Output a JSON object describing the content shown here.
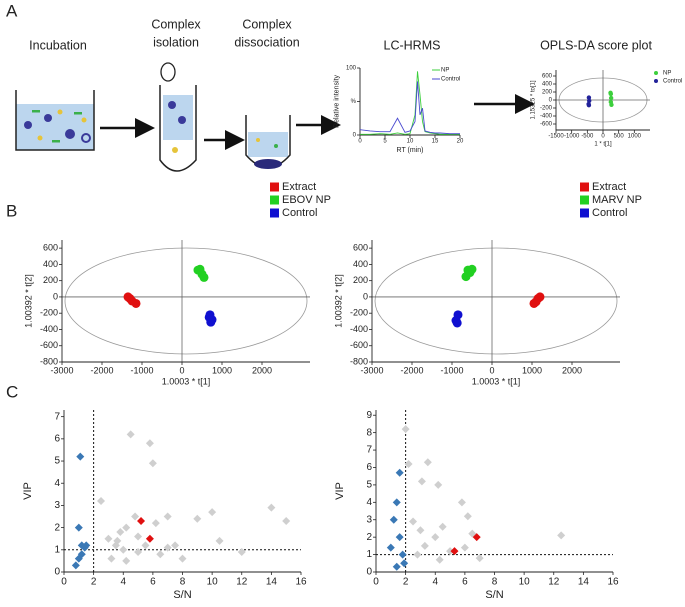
{
  "panels": [
    "A",
    "B",
    "C"
  ],
  "steps": [
    [
      "Incubation"
    ],
    [
      "Complex",
      "isolation"
    ],
    [
      "Complex",
      "dissociation"
    ],
    [
      "LC-HRMS"
    ],
    [
      "OPLS-DA score plot"
    ]
  ],
  "chart_data": [
    {
      "type": "line",
      "xlabel": "RT (min)",
      "ylabel": "Relative intensity",
      "x": [
        0,
        2,
        4,
        6,
        7.5,
        9,
        10,
        11,
        11.5,
        12,
        12.5,
        13,
        14,
        15,
        16,
        18,
        20
      ],
      "series": [
        {
          "name": "NP",
          "color": "#3ccf3c",
          "values": [
            1,
            1,
            2,
            1,
            3,
            1,
            2,
            30,
            95,
            60,
            20,
            5,
            3,
            2,
            1,
            1,
            1
          ]
        },
        {
          "name": "Control",
          "color": "#4a4ad0",
          "values": [
            8,
            6,
            5,
            5,
            25,
            4,
            6,
            20,
            80,
            30,
            40,
            6,
            4,
            3,
            3,
            2,
            2
          ]
        }
      ],
      "xlim": [
        0,
        20
      ],
      "xticks": [
        0,
        5,
        10,
        15,
        20
      ],
      "ylim": [
        0,
        100
      ],
      "yticks": [
        0,
        {
          "value": 50,
          "label": "%"
        },
        100
      ],
      "legend": "top-right"
    },
    {
      "type": "scatter",
      "xlabel": "1 * t[1]",
      "ylabel": "1.15325 * to[1]",
      "marker": "circle",
      "ellipse": true,
      "zero_lines": true,
      "series": [
        {
          "name": "NP",
          "color": "#3ccf3c",
          "x": [
            250,
            260,
            250,
            270,
            240
          ],
          "values": [
            150,
            50,
            -50,
            -120,
            180
          ]
        },
        {
          "name": "Control",
          "color": "#22229a",
          "x": [
            -450,
            -440,
            -460,
            -450
          ],
          "values": [
            60,
            -20,
            -100,
            -130
          ]
        }
      ],
      "xlim": [
        -1500,
        1500
      ],
      "xticks": [
        -1500,
        -1000,
        -500,
        0,
        500,
        1000
      ],
      "ylim": [
        -750,
        750
      ],
      "yticks": [
        -600,
        -400,
        -200,
        0,
        200,
        400,
        600
      ],
      "legend": "right"
    },
    {
      "type": "scatter",
      "xlabel": "1.0003 * t[1]",
      "ylabel": "1.00392 * t[2]",
      "marker": "circle",
      "ellipse": true,
      "zero_lines": true,
      "series": [
        {
          "name": "Extract",
          "color": "#e01010",
          "x": [
            -1300,
            -1250,
            -1150,
            -1350
          ],
          "values": [
            -20,
            -50,
            -80,
            0
          ]
        },
        {
          "name": "EBOV NP",
          "color": "#22d022",
          "x": [
            400,
            500,
            550,
            450
          ],
          "values": [
            330,
            280,
            240,
            340
          ]
        },
        {
          "name": "Control",
          "color": "#1010d0",
          "x": [
            700,
            750,
            720,
            680
          ],
          "values": [
            -220,
            -280,
            -310,
            -250
          ]
        }
      ],
      "xlim": [
        -3000,
        3200
      ],
      "xticks": [
        -3000,
        -2000,
        -1000,
        0,
        1000,
        2000
      ],
      "ylim": [
        -800,
        700
      ],
      "yticks": [
        -800,
        -600,
        -400,
        -200,
        0,
        200,
        400,
        600
      ],
      "legend": "above-right"
    },
    {
      "type": "scatter",
      "xlabel": "1.0003 * t[1]",
      "ylabel": "1.00392 * t[2]",
      "marker": "circle",
      "ellipse": true,
      "zero_lines": true,
      "series": [
        {
          "name": "Extract",
          "color": "#e01010",
          "x": [
            1150,
            1100,
            1050,
            1200
          ],
          "values": [
            -20,
            -60,
            -80,
            0
          ]
        },
        {
          "name": "MARV NP",
          "color": "#22d022",
          "x": [
            -600,
            -550,
            -650,
            -500
          ],
          "values": [
            330,
            300,
            250,
            340
          ]
        },
        {
          "name": "Control",
          "color": "#1010d0",
          "x": [
            -850,
            -900,
            -870
          ],
          "values": [
            -220,
            -290,
            -320
          ]
        }
      ],
      "xlim": [
        -3000,
        3200
      ],
      "xticks": [
        -3000,
        -2000,
        -1000,
        0,
        1000,
        2000
      ],
      "ylim": [
        -800,
        700
      ],
      "yticks": [
        -800,
        -600,
        -400,
        -200,
        0,
        200,
        400,
        600
      ],
      "legend": "above-right"
    },
    {
      "type": "scatter",
      "xlabel": "S/N",
      "ylabel": "VIP",
      "marker": "diamond",
      "thresholds": {
        "x": 2,
        "y": 1
      },
      "series": [
        {
          "color": "#cfcfcf",
          "x": [
            2.5,
            3,
            3.2,
            3.5,
            3.8,
            4,
            4.2,
            4.5,
            4.8,
            5,
            5,
            5.5,
            5.8,
            6,
            6.2,
            6.5,
            7,
            7,
            7.5,
            8,
            9,
            10,
            10.5,
            12,
            14,
            15,
            4.2,
            3.6
          ],
          "values": [
            3.2,
            1.5,
            0.6,
            1.2,
            1.8,
            1.0,
            0.5,
            6.2,
            2.5,
            1.6,
            0.9,
            1.2,
            5.8,
            4.9,
            2.2,
            0.8,
            2.5,
            1.1,
            1.2,
            0.6,
            2.4,
            2.7,
            1.4,
            0.9,
            2.9,
            2.3,
            2.0,
            1.4
          ]
        },
        {
          "color": "#3a78b5",
          "x": [
            1.1,
            1.0,
            1.2,
            1.4,
            1.0,
            0.8,
            1.5,
            1.2
          ],
          "values": [
            5.2,
            2.0,
            1.2,
            1.1,
            0.6,
            0.3,
            1.2,
            0.8
          ]
        },
        {
          "color": "#e01010",
          "x": [
            5.2,
            5.8
          ],
          "values": [
            2.3,
            1.5
          ]
        }
      ],
      "xlim": [
        0,
        16
      ],
      "xticks": [
        0,
        2,
        4,
        6,
        8,
        10,
        12,
        14,
        16
      ],
      "ylim": [
        0,
        7.3
      ],
      "yticks": [
        0,
        1,
        2,
        3,
        4,
        5,
        6,
        7
      ]
    },
    {
      "type": "scatter",
      "xlabel": "S/N",
      "ylabel": "VIP",
      "marker": "diamond",
      "thresholds": {
        "x": 2,
        "y": 1
      },
      "series": [
        {
          "color": "#cfcfcf",
          "x": [
            2,
            2.2,
            3.5,
            3.1,
            4.2,
            5.8,
            6.2,
            3,
            4,
            4.5,
            5,
            6,
            7,
            12.5,
            3.3,
            2.8,
            4.3,
            6.5,
            2.5
          ],
          "values": [
            8.2,
            6.2,
            6.3,
            5.2,
            5.0,
            4.0,
            3.2,
            2.4,
            2.0,
            2.6,
            1.2,
            1.4,
            0.8,
            2.1,
            1.5,
            1.0,
            0.7,
            2.2,
            2.9
          ]
        },
        {
          "color": "#3a78b5",
          "x": [
            1.6,
            1.4,
            1.0,
            1.6,
            1.8,
            1.4,
            1.9,
            1.2
          ],
          "values": [
            5.7,
            4.0,
            1.4,
            2.0,
            1.0,
            0.3,
            0.5,
            3.0
          ]
        },
        {
          "color": "#e01010",
          "x": [
            5.3,
            6.8
          ],
          "values": [
            1.2,
            2.0
          ]
        }
      ],
      "xlim": [
        0,
        16
      ],
      "xticks": [
        0,
        2,
        4,
        6,
        8,
        10,
        12,
        14,
        16
      ],
      "ylim": [
        0,
        9.3
      ],
      "yticks": [
        0,
        1,
        2,
        3,
        4,
        5,
        6,
        7,
        8,
        9
      ]
    }
  ]
}
